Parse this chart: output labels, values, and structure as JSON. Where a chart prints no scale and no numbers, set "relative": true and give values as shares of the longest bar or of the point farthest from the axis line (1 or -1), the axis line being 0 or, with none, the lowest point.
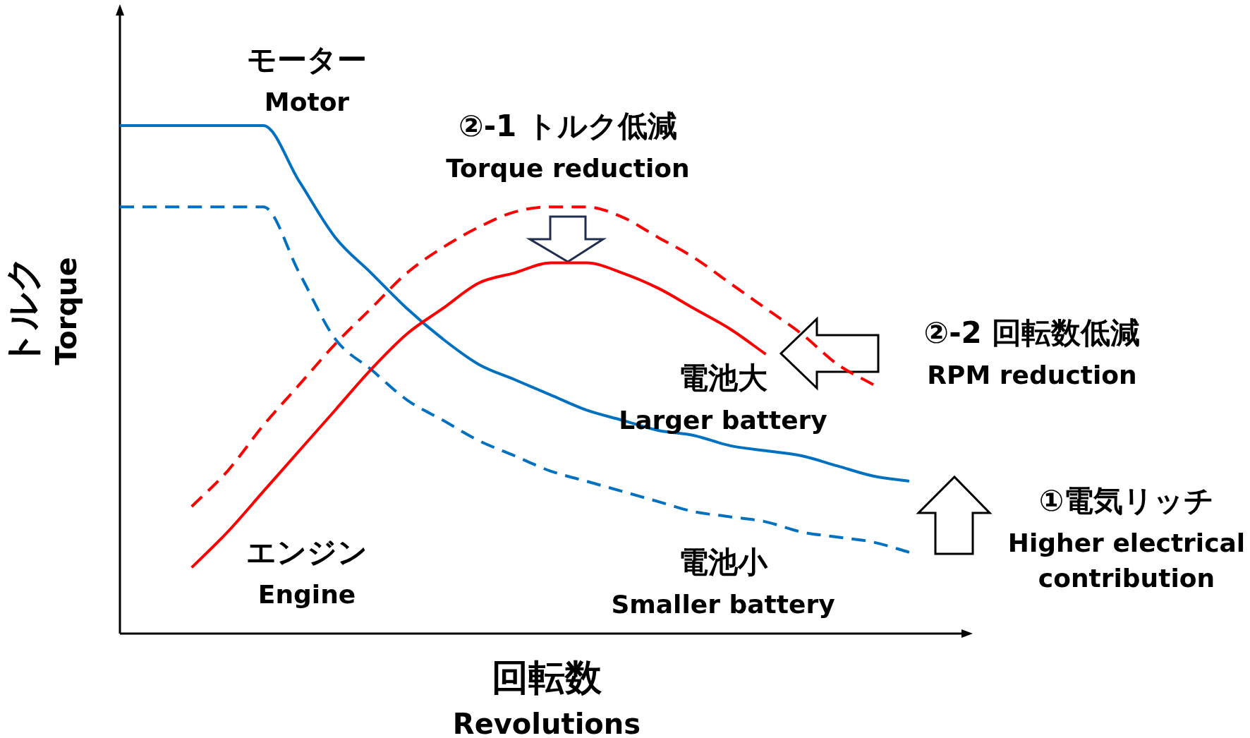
{
  "chart_data": {
    "type": "line",
    "relative": true,
    "xlabel": "回転数\nRevolutions",
    "ylabel": "トルク\nTorque",
    "categories": [
      null,
      null,
      null,
      null,
      null,
      null,
      null,
      null,
      null,
      null,
      null,
      null,
      null,
      null,
      null,
      null,
      null,
      null,
      null,
      null,
      null,
      null,
      null
    ],
    "series": [
      {
        "color": "#0070c0",
        "line_style": "solid",
        "values": [
          1.0,
          1.0,
          1.0,
          1.0,
          1.0,
          0.89,
          0.78,
          0.71,
          0.64,
          0.58,
          0.53,
          0.5,
          0.47,
          0.44,
          0.42,
          0.4,
          0.39,
          0.37,
          0.36,
          0.35,
          0.33,
          0.31,
          0.3
        ]
      },
      {
        "color": "#0070c0",
        "line_style": "dashed",
        "values": [
          0.84,
          0.84,
          0.84,
          0.84,
          0.84,
          0.71,
          0.58,
          0.52,
          0.46,
          0.42,
          0.38,
          0.35,
          0.32,
          0.3,
          0.28,
          0.26,
          0.24,
          0.23,
          0.22,
          0.2,
          0.19,
          0.18,
          0.16
        ]
      },
      {
        "color": "#ff0000",
        "line_style": "solid",
        "values": [
          null,
          null,
          0.13,
          0.2,
          0.28,
          0.36,
          0.44,
          0.52,
          0.59,
          0.64,
          0.69,
          0.71,
          0.73,
          0.73,
          0.71,
          0.68,
          0.64,
          0.6,
          0.55,
          null,
          null,
          null,
          null
        ]
      },
      {
        "color": "#ff0000",
        "line_style": "dashed",
        "values": [
          null,
          null,
          0.25,
          0.32,
          0.41,
          0.49,
          0.57,
          0.64,
          0.71,
          0.76,
          0.8,
          0.83,
          0.84,
          0.84,
          0.82,
          0.78,
          0.74,
          0.69,
          0.64,
          0.59,
          0.53,
          0.49,
          null
        ]
      }
    ],
    "annotations": [
      "モーター\nMotor",
      "エンジン\nEngine",
      "電池大\nLarger battery",
      "電池小\nSmaller battery",
      "②-1 トルク低減\nTorque reduction",
      "②-2 回転数低減\nRPM reduction",
      "①電気リッチ\nHigher electrical\ncontribution"
    ]
  }
}
